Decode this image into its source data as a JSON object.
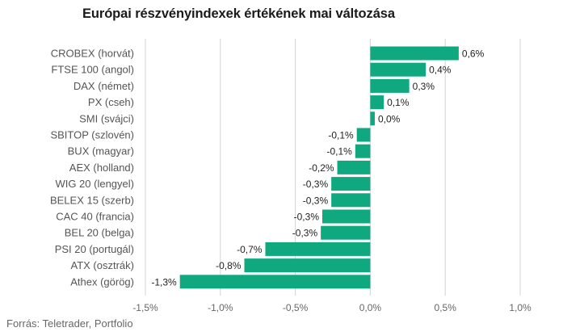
{
  "header": {
    "title": "Európai részvényindexek értékének mai változása"
  },
  "footer": {
    "source": "Forrás: Teletrader, Portfolio"
  },
  "chart_data": {
    "type": "bar",
    "orientation": "horizontal",
    "title": "Európai részvényindexek értékének mai változása",
    "categories": [
      "CROBEX (horvát)",
      "FTSE 100 (angol)",
      "DAX (német)",
      "PX (cseh)",
      "SMI (svájci)",
      "SBITOP (szlovén)",
      "BUX (magyar)",
      "AEX (holland)",
      "WIG 20 (lengyel)",
      "BELEX 15 (szerb)",
      "CAC 40 (francia)",
      "BEL 20 (belga)",
      "PSI 20 (portugál)",
      "ATX (osztrák)",
      "Athex (görög)"
    ],
    "values": [
      0.59,
      0.37,
      0.26,
      0.09,
      0.03,
      -0.09,
      -0.1,
      -0.22,
      -0.26,
      -0.26,
      -0.32,
      -0.33,
      -0.7,
      -0.84,
      -1.27
    ],
    "data_labels": [
      "0,6%",
      "0,4%",
      "0,3%",
      "0,1%",
      "0,0%",
      "-0,1%",
      "-0,1%",
      "-0,2%",
      "-0,3%",
      "-0,3%",
      "-0,3%",
      "-0,3%",
      "-0,7%",
      "-0,8%",
      "-1,3%"
    ],
    "xlim": [
      -1.5,
      1.0
    ],
    "xticks": [
      -1.5,
      -1.0,
      -0.5,
      0.0,
      0.5,
      1.0
    ],
    "xtick_labels": [
      "-1,5%",
      "-1,0%",
      "-0,5%",
      "0,0%",
      "0,5%",
      "1,0%"
    ],
    "grid": true,
    "bar_color": "#0fa87f",
    "grid_color": "#d4d4d4"
  }
}
